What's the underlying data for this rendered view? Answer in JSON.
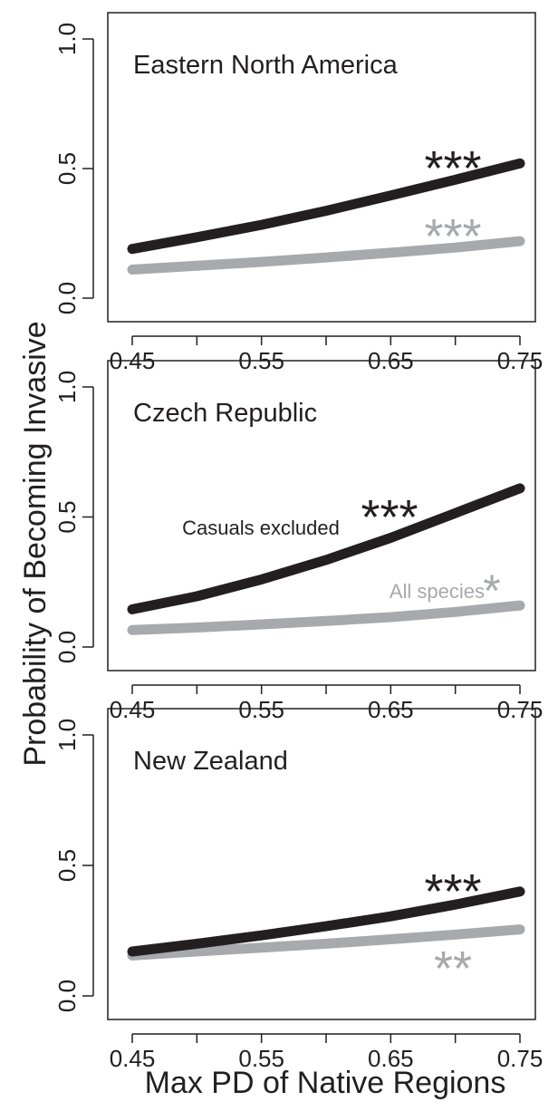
{
  "figure": {
    "ylabel": "Probability of Becoming Invasive",
    "xlabel": "Max PD of Native Regions"
  },
  "colors": {
    "casuals_excluded": "#231f20",
    "all_species": "#a7a9ac",
    "axis": "#231f20"
  },
  "chart_data": [
    {
      "type": "line",
      "title": "Eastern North America",
      "xlim": [
        0.45,
        0.75
      ],
      "ylim": [
        0.0,
        1.0
      ],
      "x_ticks": [
        0.45,
        0.5,
        0.55,
        0.6,
        0.65,
        0.7,
        0.75
      ],
      "x_tick_labels": [
        "0.45",
        "",
        "0.55",
        "",
        "0.65",
        "",
        "0.75"
      ],
      "y_ticks": [
        0.0,
        0.5,
        1.0
      ],
      "y_tick_labels": [
        "0.0",
        "0.5",
        "1.0"
      ],
      "grid": false,
      "series": [
        {
          "key": "casuals_excluded",
          "x": [
            0.45,
            0.5,
            0.55,
            0.6,
            0.65,
            0.7,
            0.75
          ],
          "values": [
            0.19,
            0.235,
            0.283,
            0.337,
            0.396,
            0.457,
            0.52
          ],
          "significance": "***"
        },
        {
          "key": "all_species",
          "x": [
            0.45,
            0.5,
            0.55,
            0.6,
            0.65,
            0.7,
            0.75
          ],
          "values": [
            0.11,
            0.125,
            0.14,
            0.157,
            0.175,
            0.195,
            0.22
          ],
          "significance": "***"
        }
      ],
      "annotations": []
    },
    {
      "type": "line",
      "title": "Czech Republic",
      "xlim": [
        0.45,
        0.75
      ],
      "ylim": [
        0.0,
        1.0
      ],
      "x_ticks": [
        0.45,
        0.5,
        0.55,
        0.6,
        0.65,
        0.7,
        0.75
      ],
      "x_tick_labels": [
        "0.45",
        "",
        "0.55",
        "",
        "0.65",
        "",
        "0.75"
      ],
      "y_ticks": [
        0.0,
        0.5,
        1.0
      ],
      "y_tick_labels": [
        "0.0",
        "0.5",
        "1.0"
      ],
      "grid": false,
      "series": [
        {
          "key": "casuals_excluded",
          "x": [
            0.45,
            0.5,
            0.55,
            0.6,
            0.65,
            0.7,
            0.75
          ],
          "values": [
            0.145,
            0.195,
            0.26,
            0.335,
            0.42,
            0.515,
            0.61
          ],
          "significance": "***"
        },
        {
          "key": "all_species",
          "x": [
            0.45,
            0.5,
            0.55,
            0.6,
            0.65,
            0.7,
            0.75
          ],
          "values": [
            0.065,
            0.075,
            0.087,
            0.1,
            0.115,
            0.135,
            0.16
          ],
          "significance": "*"
        }
      ],
      "annotations": [
        {
          "text": "Casuals excluded",
          "key": "casuals_excluded"
        },
        {
          "text": "All species",
          "key": "all_species"
        }
      ]
    },
    {
      "type": "line",
      "title": "New Zealand",
      "xlim": [
        0.45,
        0.75
      ],
      "ylim": [
        0.0,
        1.0
      ],
      "x_ticks": [
        0.45,
        0.5,
        0.55,
        0.6,
        0.65,
        0.7,
        0.75
      ],
      "x_tick_labels": [
        "0.45",
        "",
        "0.55",
        "",
        "0.65",
        "",
        "0.75"
      ],
      "y_ticks": [
        0.0,
        0.5,
        1.0
      ],
      "y_tick_labels": [
        "0.0",
        "0.5",
        "1.0"
      ],
      "grid": false,
      "series": [
        {
          "key": "casuals_excluded",
          "x": [
            0.45,
            0.5,
            0.55,
            0.6,
            0.65,
            0.7,
            0.75
          ],
          "values": [
            0.17,
            0.2,
            0.232,
            0.267,
            0.305,
            0.35,
            0.4
          ],
          "significance": "***"
        },
        {
          "key": "all_species",
          "x": [
            0.45,
            0.5,
            0.55,
            0.6,
            0.65,
            0.7,
            0.75
          ],
          "values": [
            0.155,
            0.17,
            0.185,
            0.2,
            0.217,
            0.235,
            0.255
          ],
          "significance": "**"
        }
      ],
      "annotations": []
    }
  ]
}
